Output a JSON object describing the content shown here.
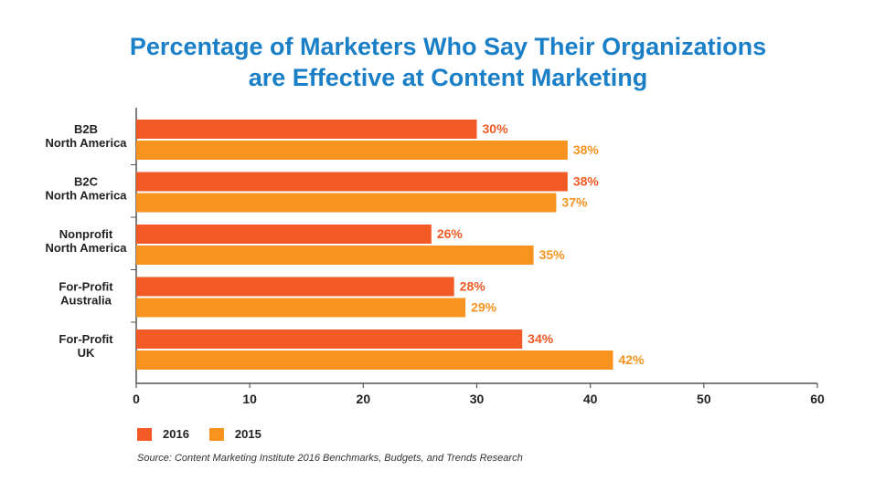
{
  "title_line1": "Percentage of Marketers Who Say Their Organizations",
  "title_line2": "are Effective at Content Marketing",
  "source": "Source: Content Marketing Institute 2016 Benchmarks, Budgets, and Trends Research",
  "colors": {
    "2016": "#f15a24",
    "2015": "#f7931e"
  },
  "chart_data": {
    "type": "bar",
    "orientation": "horizontal",
    "title": "Percentage of Marketers Who Say Their Organizations are Effective at Content Marketing",
    "categories": [
      [
        "B2B",
        "North America"
      ],
      [
        "B2C",
        "North America"
      ],
      [
        "Nonprofit",
        "North America"
      ],
      [
        "For-Profit",
        "Australia"
      ],
      [
        "For-Profit",
        "UK"
      ]
    ],
    "series": [
      {
        "name": "2016",
        "values": [
          30,
          38,
          26,
          28,
          34
        ]
      },
      {
        "name": "2015",
        "values": [
          38,
          37,
          35,
          29,
          42
        ]
      }
    ],
    "data_labels": [
      [
        "30%",
        "38%",
        "26%",
        "28%",
        "34%"
      ],
      [
        "38%",
        "37%",
        "35%",
        "29%",
        "42%"
      ]
    ],
    "xlim": [
      0,
      60
    ],
    "xticks": [
      0,
      10,
      20,
      30,
      40,
      50,
      60
    ],
    "xlabel": "",
    "ylabel": "",
    "legend_position": "bottom-left"
  }
}
